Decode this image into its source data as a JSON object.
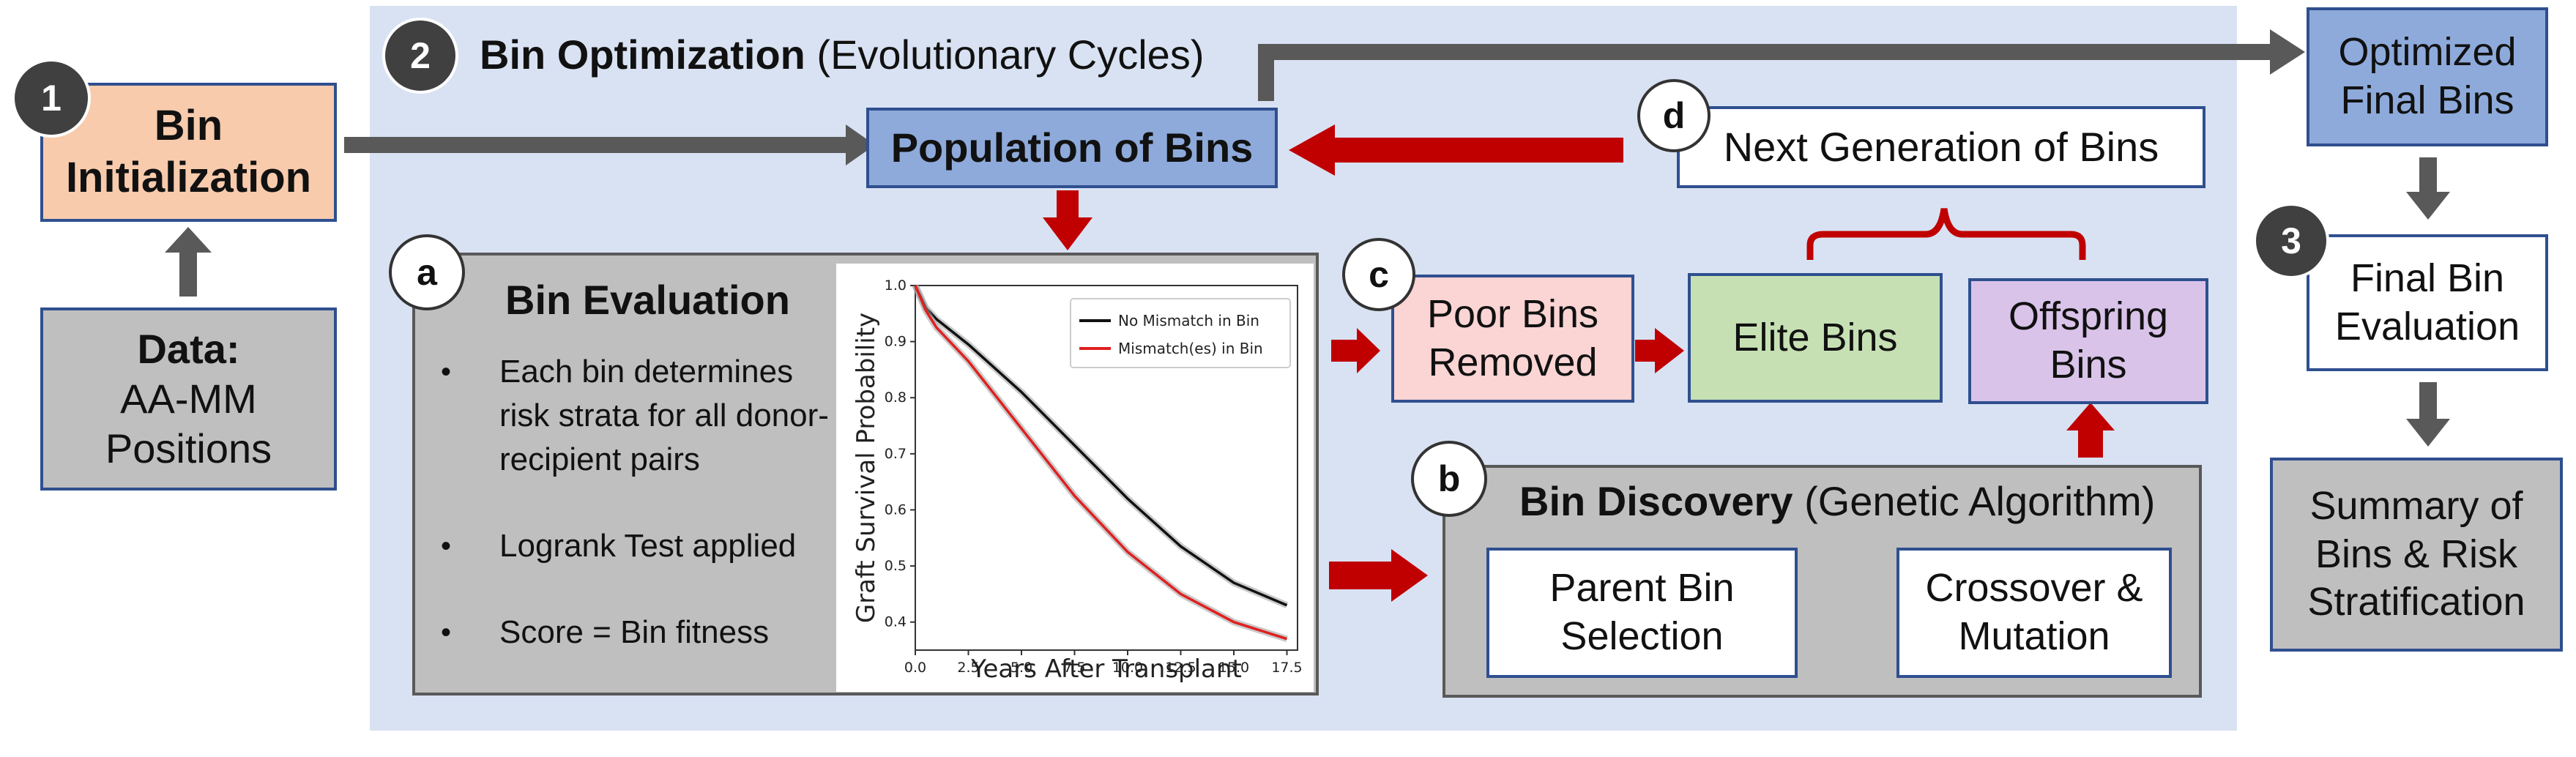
{
  "steps": {
    "initialization": {
      "number": "1",
      "title": "Bin Initialization"
    },
    "optimization": {
      "number": "2",
      "title_bold": "Bin Optimization",
      "title_rest": "(Evolutionary Cycles)"
    },
    "final_evaluation": {
      "number": "3",
      "title": "Final Bin Evaluation"
    }
  },
  "data_box": {
    "title": "Data:",
    "line1": "AA-MM",
    "line2": "Positions"
  },
  "population": {
    "label": "Population of Bins"
  },
  "next_generation": {
    "letter": "d",
    "label": "Next Generation of Bins"
  },
  "bin_evaluation": {
    "letter": "a",
    "title": "Bin Evaluation",
    "bullets": [
      "Each bin determines risk strata for all donor-recipient pairs",
      "Logrank Test applied",
      "Score = Bin fitness"
    ]
  },
  "selection": {
    "letter": "c",
    "poor": "Poor Bins Removed",
    "elite": "Elite Bins",
    "offspring": "Offspring Bins"
  },
  "discovery": {
    "letter": "b",
    "title_bold": "Bin Discovery",
    "title_rest": "(Genetic Algorithm)",
    "parent": "Parent Bin Selection",
    "crossover": "Crossover & Mutation"
  },
  "optimized": {
    "label": "Optimized Final Bins"
  },
  "summary": {
    "label": "Summary of Bins & Risk Stratification"
  },
  "colors": {
    "panel": "#d9e2f3",
    "init_fill": "#f8cbad",
    "gray_box": "#bfbfbf",
    "blue_box": "#8eaadb",
    "poor_fill": "#fbd4d4",
    "elite_fill": "#c6e0b4",
    "offspring_fill": "#d9c3e9",
    "red_arrow": "#c00000",
    "gray_arrow": "#595959"
  },
  "chart_data": {
    "type": "line",
    "title": "",
    "xlabel": "Years After Transplant",
    "ylabel": "Graft Survival Probability",
    "xlim": [
      0,
      18
    ],
    "ylim": [
      0.35,
      1.0
    ],
    "x_ticks": [
      "0.0",
      "2.5",
      "5.0",
      "7.5",
      "10.0",
      "12.5",
      "15.0",
      "17.5"
    ],
    "y_ticks": [
      "0.4",
      "0.5",
      "0.6",
      "0.7",
      "0.8",
      "0.9",
      "1.0"
    ],
    "legend_position": "top-right",
    "series": [
      {
        "name": "No Mismatch in Bin",
        "color": "#111111",
        "x": [
          0,
          0.5,
          1,
          2.5,
          5,
          7.5,
          10,
          12.5,
          15,
          17.5
        ],
        "y": [
          1.0,
          0.96,
          0.94,
          0.895,
          0.81,
          0.715,
          0.62,
          0.535,
          0.47,
          0.43
        ]
      },
      {
        "name": "Mismatch(es) in Bin",
        "color": "#e02020",
        "x": [
          0,
          0.5,
          1,
          2.5,
          5,
          7.5,
          10,
          12.5,
          15,
          17.5
        ],
        "y": [
          1.0,
          0.955,
          0.925,
          0.865,
          0.745,
          0.625,
          0.525,
          0.45,
          0.4,
          0.37
        ]
      }
    ]
  }
}
